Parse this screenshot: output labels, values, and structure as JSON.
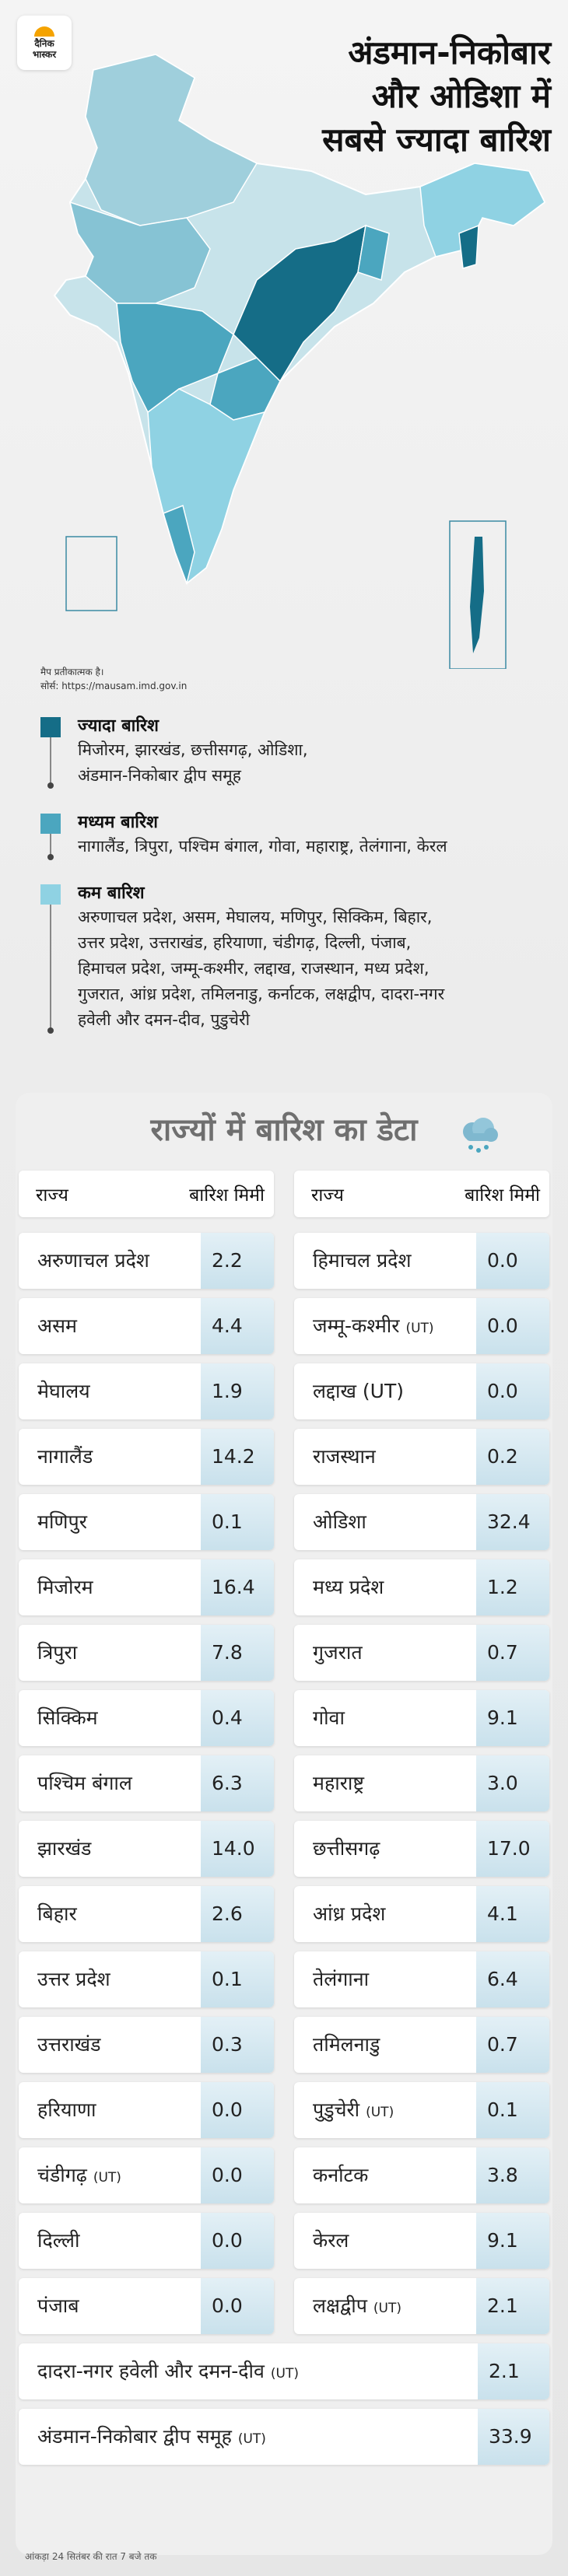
{
  "brand": {
    "line1": "दैनिक",
    "line2": "भास्कर"
  },
  "headline": [
    "अंडमान-निकोबार",
    "और ओडिशा में",
    "सबसे ज्यादा बारिश"
  ],
  "map_note": {
    "line1": "मैप प्रतीकात्मक है।",
    "line2": "सोर्स: https://mausam.imd.gov.in"
  },
  "colors": {
    "high": "#156d87",
    "medium": "#4ba6bf",
    "low": "#8fd2e3",
    "base": "#c7e3ea"
  },
  "legend": [
    {
      "title": "ज्यादा बारिश",
      "lines": [
        "मिजोरम, झारखंड, छत्तीसगढ़, ओडिशा,",
        "अंडमान-निकोबार द्वीप समूह"
      ]
    },
    {
      "title": "मध्यम बारिश",
      "lines": [
        "नागालैंड, त्रिपुरा, पश्चिम बंगाल, गोवा, महाराष्ट्र, तेलंगाना, केरल"
      ]
    },
    {
      "title": "कम बारिश",
      "lines": [
        "अरुणाचल प्रदेश, असम, मेघालय, मणिपुर, सिक्किम, बिहार,",
        "उत्तर प्रदेश, उत्तराखंड, हरियाणा, चंडीगढ़, दिल्ली, पंजाब,",
        "हिमाचल प्रदेश, जम्मू-कश्मीर, लद्दाख, राजस्थान, मध्य प्रदेश,",
        "गुजरात, आंध्र प्रदेश, तमिलनाडु, कर्नाटक, लक्षद्वीप, दादरा-नगर",
        "हवेली और दमन-दीव, पुडुचेरी"
      ]
    }
  ],
  "table": {
    "title": "राज्यों में बारिश का डेटा",
    "col_state": "राज्य",
    "col_rain": "बारिश मिमी",
    "left": [
      {
        "name": "अरुणाचल प्रदेश",
        "val": "2.2"
      },
      {
        "name": "असम",
        "val": "4.4"
      },
      {
        "name": "मेघालय",
        "val": "1.9"
      },
      {
        "name": "नागालैंड",
        "val": "14.2"
      },
      {
        "name": "मणिपुर",
        "val": "0.1"
      },
      {
        "name": "मिजोरम",
        "val": "16.4"
      },
      {
        "name": "त्रिपुरा",
        "val": "7.8"
      },
      {
        "name": "सिक्किम",
        "val": "0.4"
      },
      {
        "name": "पश्चिम बंगाल",
        "val": "6.3"
      },
      {
        "name": "झारखंड",
        "val": "14.0"
      },
      {
        "name": "बिहार",
        "val": "2.6"
      },
      {
        "name": "उत्तर प्रदेश",
        "val": "0.1"
      },
      {
        "name": "उत्तराखंड",
        "val": "0.3"
      },
      {
        "name": "हरियाणा",
        "val": "0.0"
      },
      {
        "name": "चंडीगढ़",
        "ut": "(UT)",
        "val": "0.0"
      },
      {
        "name": "दिल्ली",
        "val": "0.0"
      },
      {
        "name": "पंजाब",
        "val": "0.0"
      }
    ],
    "right": [
      {
        "name": "हिमाचल प्रदेश",
        "val": "0.0"
      },
      {
        "name": "जम्मू-कश्मीर",
        "ut": "(UT)",
        "val": "0.0"
      },
      {
        "name": "लद्दाख (UT)",
        "val": "0.0"
      },
      {
        "name": "राजस्थान",
        "val": "0.2"
      },
      {
        "name": "ओडिशा",
        "val": "32.4"
      },
      {
        "name": "मध्य प्रदेश",
        "val": "1.2"
      },
      {
        "name": "गुजरात",
        "val": "0.7"
      },
      {
        "name": "गोवा",
        "val": "9.1"
      },
      {
        "name": "महाराष्ट्र",
        "val": "3.0"
      },
      {
        "name": "छत्तीसगढ़",
        "val": "17.0"
      },
      {
        "name": "आंध्र प्रदेश",
        "val": "4.1"
      },
      {
        "name": "तेलंगाना",
        "val": "6.4"
      },
      {
        "name": "तमिलनाडु",
        "val": "0.7"
      },
      {
        "name": "पुडुचेरी",
        "ut": "(UT)",
        "val": "0.1"
      },
      {
        "name": "कर्नाटक",
        "val": "3.8"
      },
      {
        "name": "केरल",
        "val": "9.1"
      },
      {
        "name": "लक्षद्वीप",
        "ut": "(UT)",
        "val": "2.1"
      }
    ],
    "wide": [
      {
        "name": "दादरा-नगर हवेली और दमन-दीव",
        "ut": "(UT)",
        "val": "2.1"
      },
      {
        "name": "अंडमान-निकोबार द्वीप समूह",
        "ut": "(UT)",
        "val": "33.9"
      }
    ]
  },
  "footnote": "आंकड़ा 24 सितंबर की रात 7 बजे तक"
}
